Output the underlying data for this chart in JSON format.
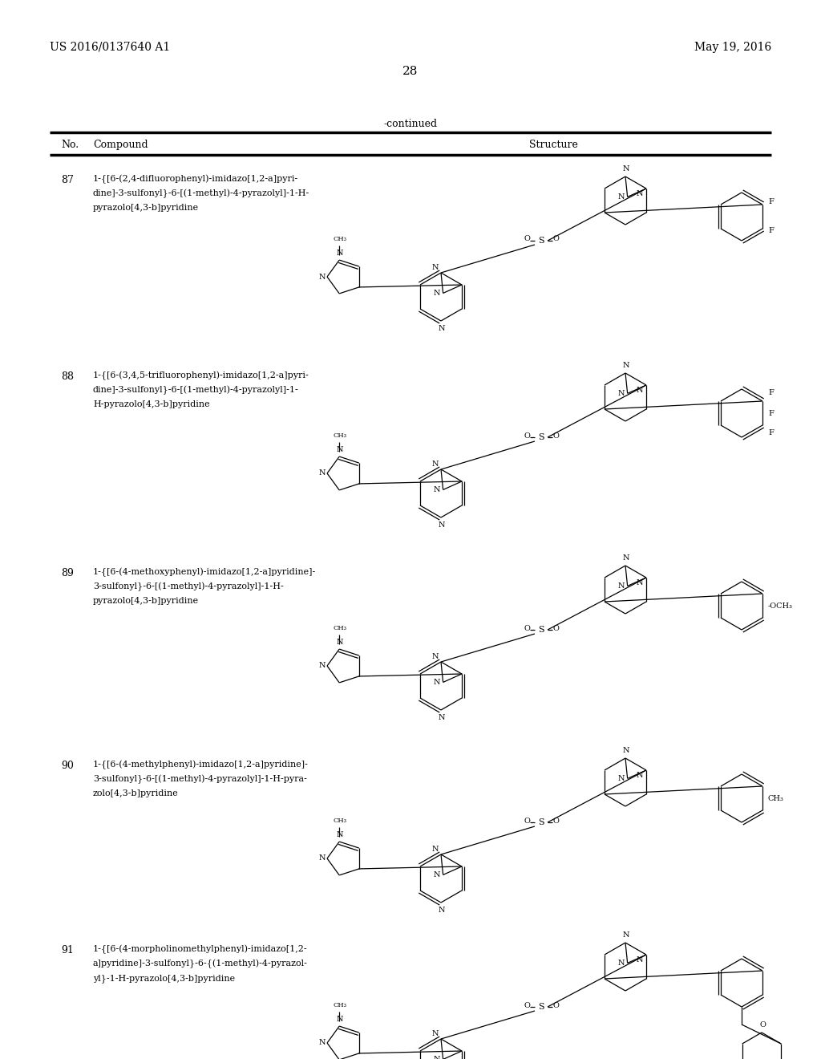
{
  "page_header_left": "US 2016/0137640 A1",
  "page_header_right": "May 19, 2016",
  "page_number": "28",
  "continued_text": "-continued",
  "table_header_no": "No.",
  "table_header_compound": "Compound",
  "table_header_structure": "Structure",
  "nos": [
    "87",
    "88",
    "89",
    "90",
    "91"
  ],
  "names": [
    [
      "1-{[6-(2,4-difluorophenyl)-imidazo[1,2-a]pyri-",
      "dine]-3-sulfonyl}-6-[(1-methyl)-4-pyrazolyl]-1-H-",
      "pyrazolo[4,3-b]pyridine"
    ],
    [
      "1-{[6-(3,4,5-trifluorophenyl)-imidazo[1,2-a]pyri-",
      "dine]-3-sulfonyl}-6-[(1-methyl)-4-pyrazolyl]-1-",
      "H-pyrazolo[4,3-b]pyridine"
    ],
    [
      "1-{[6-(4-methoxyphenyl)-imidazo[1,2-a]pyridine]-",
      "3-sulfonyl}-6-[(1-methyl)-4-pyrazolyl]-1-H-",
      "pyrazolo[4,3-b]pyridine"
    ],
    [
      "1-{[6-(4-methylphenyl)-imidazo[1,2-a]pyridine]-",
      "3-sulfonyl}-6-[(1-methyl)-4-pyrazolyl]-1-H-pyra-",
      "zolo[4,3-b]pyridine"
    ],
    [
      "1-{[6-(4-morpholinomethylphenyl)-imidazo[1,2-",
      "a]pyridine]-3-sulfonyl}-6-{(1-methyl)-4-pyrazol-",
      "yl}-1-H-pyrazolo[4,3-b]pyridine"
    ]
  ],
  "row_tops": [
    210,
    455,
    700,
    940,
    1170
  ],
  "struct_centers_x": [
    660,
    660,
    660,
    660,
    660
  ],
  "struct_centers_y": [
    310,
    555,
    795,
    1035,
    1265
  ]
}
